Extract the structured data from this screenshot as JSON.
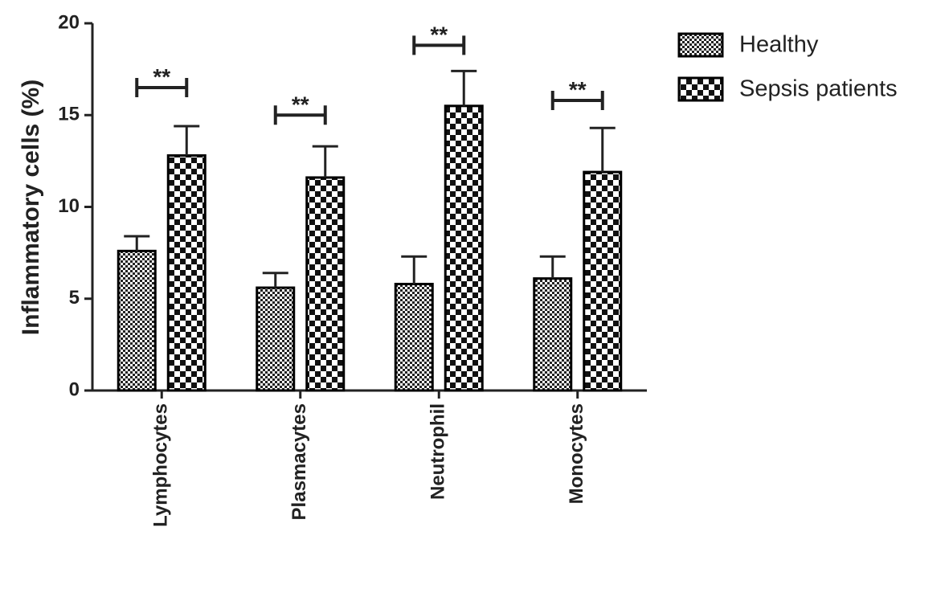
{
  "chart_data": {
    "type": "bar",
    "y_label": "Inflammatory cells (%)",
    "categories": [
      "Lymphocytes",
      "Plasmacytes",
      "Neutrophil",
      "Monocytes"
    ],
    "series": [
      {
        "name": "Healthy",
        "color": "#000000",
        "values": [
          7.6,
          5.6,
          5.8,
          6.1
        ],
        "errors": [
          0.8,
          0.8,
          1.5,
          1.2
        ]
      },
      {
        "name": "Sepsis patients",
        "color": "#000000",
        "values": [
          12.8,
          11.6,
          15.5,
          11.9
        ],
        "errors": [
          1.6,
          1.7,
          1.9,
          2.4
        ]
      }
    ],
    "annotations": [
      {
        "text": "**",
        "y": 16.5
      },
      {
        "text": "**",
        "y": 15.0
      },
      {
        "text": "**",
        "y": 18.8
      },
      {
        "text": "**",
        "y": 15.8
      }
    ],
    "ylim": [
      0,
      20
    ],
    "yticks": [
      0,
      5,
      10,
      15,
      20
    ]
  }
}
